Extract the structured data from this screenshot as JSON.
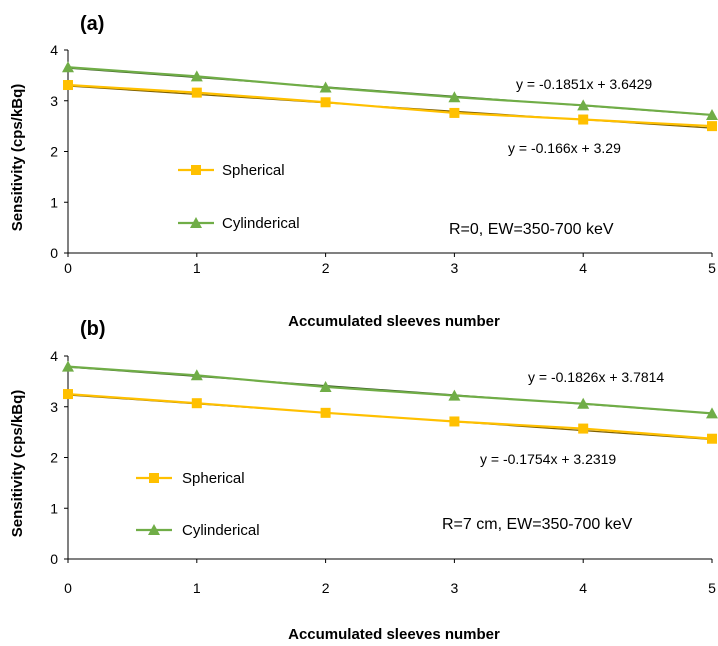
{
  "chart_data": [
    {
      "type": "line",
      "panel_label": "(a)",
      "xlabel": "Accumulated sleeves number",
      "ylabel": "Sensitivity (cps/kBq)",
      "x": [
        0,
        1,
        2,
        3,
        4,
        5
      ],
      "xlim": [
        0,
        5
      ],
      "ylim": [
        0,
        4
      ],
      "yticks": [
        0,
        1,
        2,
        3,
        4
      ],
      "grid": false,
      "legend_position": "center-left",
      "series": [
        {
          "name": "Spherical",
          "color": "#ffc000",
          "marker": "square",
          "values": [
            3.31,
            3.16,
            2.97,
            2.76,
            2.63,
            2.5
          ],
          "trendline": {
            "slope": -0.166,
            "intercept": 3.29,
            "color": "#7f6000"
          },
          "equation": "y = -0.166x + 3.29"
        },
        {
          "name": "Cylinderical",
          "color": "#70ad47",
          "marker": "triangle",
          "values": [
            3.66,
            3.48,
            3.26,
            3.07,
            2.91,
            2.72
          ],
          "trendline": {
            "slope": -0.1851,
            "intercept": 3.6429,
            "color": "#375623"
          },
          "equation": "y = -0.1851x + 3.6429"
        }
      ],
      "annotation": "R=0, EW=350-700 keV"
    },
    {
      "type": "line",
      "panel_label": "(b)",
      "xlabel": "Accumulated sleeves number",
      "ylabel": "Sensitivity (cps/kBq)",
      "x": [
        0,
        1,
        2,
        3,
        4,
        5
      ],
      "xlim": [
        0,
        5
      ],
      "ylim": [
        0,
        4
      ],
      "yticks": [
        0,
        1,
        2,
        3,
        4
      ],
      "grid": false,
      "legend_position": "center-left",
      "series": [
        {
          "name": "Spherical",
          "color": "#ffc000",
          "marker": "square",
          "values": [
            3.25,
            3.07,
            2.88,
            2.71,
            2.57,
            2.37
          ],
          "trendline": {
            "slope": -0.1754,
            "intercept": 3.2319,
            "color": "#7f6000"
          },
          "equation": "y = -0.1754x + 3.2319"
        },
        {
          "name": "Cylinderical",
          "color": "#70ad47",
          "marker": "triangle",
          "values": [
            3.79,
            3.62,
            3.39,
            3.22,
            3.06,
            2.87
          ],
          "trendline": {
            "slope": -0.1826,
            "intercept": 3.7814,
            "color": "#375623"
          },
          "equation": "y = -0.1826x + 3.7814"
        }
      ],
      "annotation": "R=7 cm, EW=350-700 keV"
    }
  ]
}
